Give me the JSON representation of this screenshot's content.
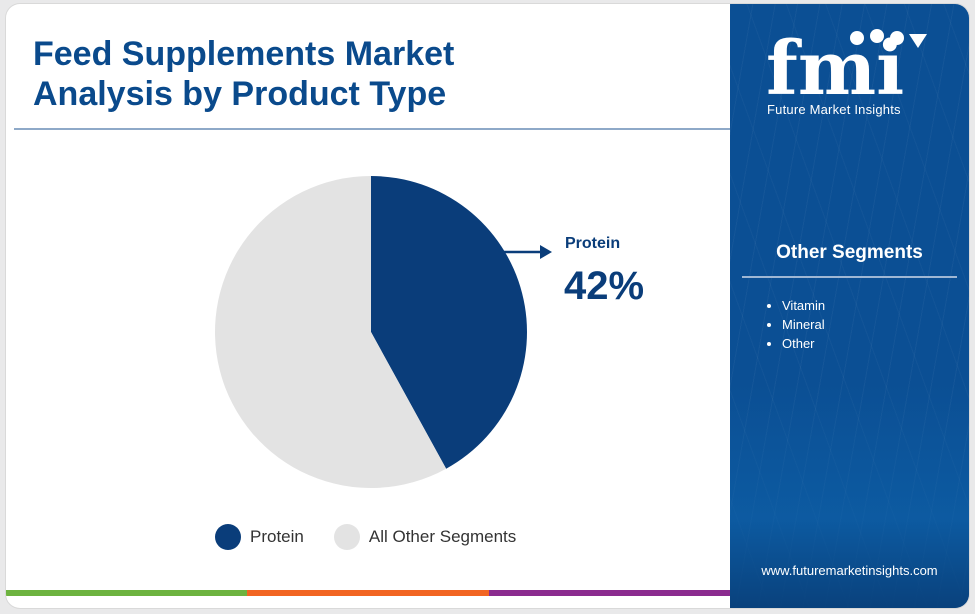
{
  "title_lines": [
    "Feed Supplements Market",
    "Analysis by Product Type"
  ],
  "colors": {
    "protein": "#0a3d7a",
    "other": "#e3e3e3",
    "panel": "#0b4f94",
    "accent_text": "#0a4a8c"
  },
  "chart_data": {
    "type": "pie",
    "title": "Feed Supplements Market Analysis by Product Type",
    "slices": [
      {
        "label": "Protein",
        "value": 42,
        "color": "#0a3d7a"
      },
      {
        "label": "All Other Segments",
        "value": 58,
        "color": "#e3e3e3"
      }
    ],
    "legend_position": "bottom"
  },
  "callout": {
    "label": "Protein",
    "value": "42%"
  },
  "legend": [
    {
      "label": "Protein",
      "color": "#0a3d7a"
    },
    {
      "label": "All Other Segments",
      "color": "#e3e3e3"
    }
  ],
  "sidebar": {
    "logo_letters": "fmi",
    "logo_text": "Future Market Insights",
    "segments_title": "Other Segments",
    "segments": [
      "Vitamin",
      "Mineral",
      "Other"
    ],
    "website": "www.futuremarketinsights.com"
  },
  "bottom_bar_colors": [
    "#6db33f",
    "#f26522",
    "#8b2b8f"
  ]
}
